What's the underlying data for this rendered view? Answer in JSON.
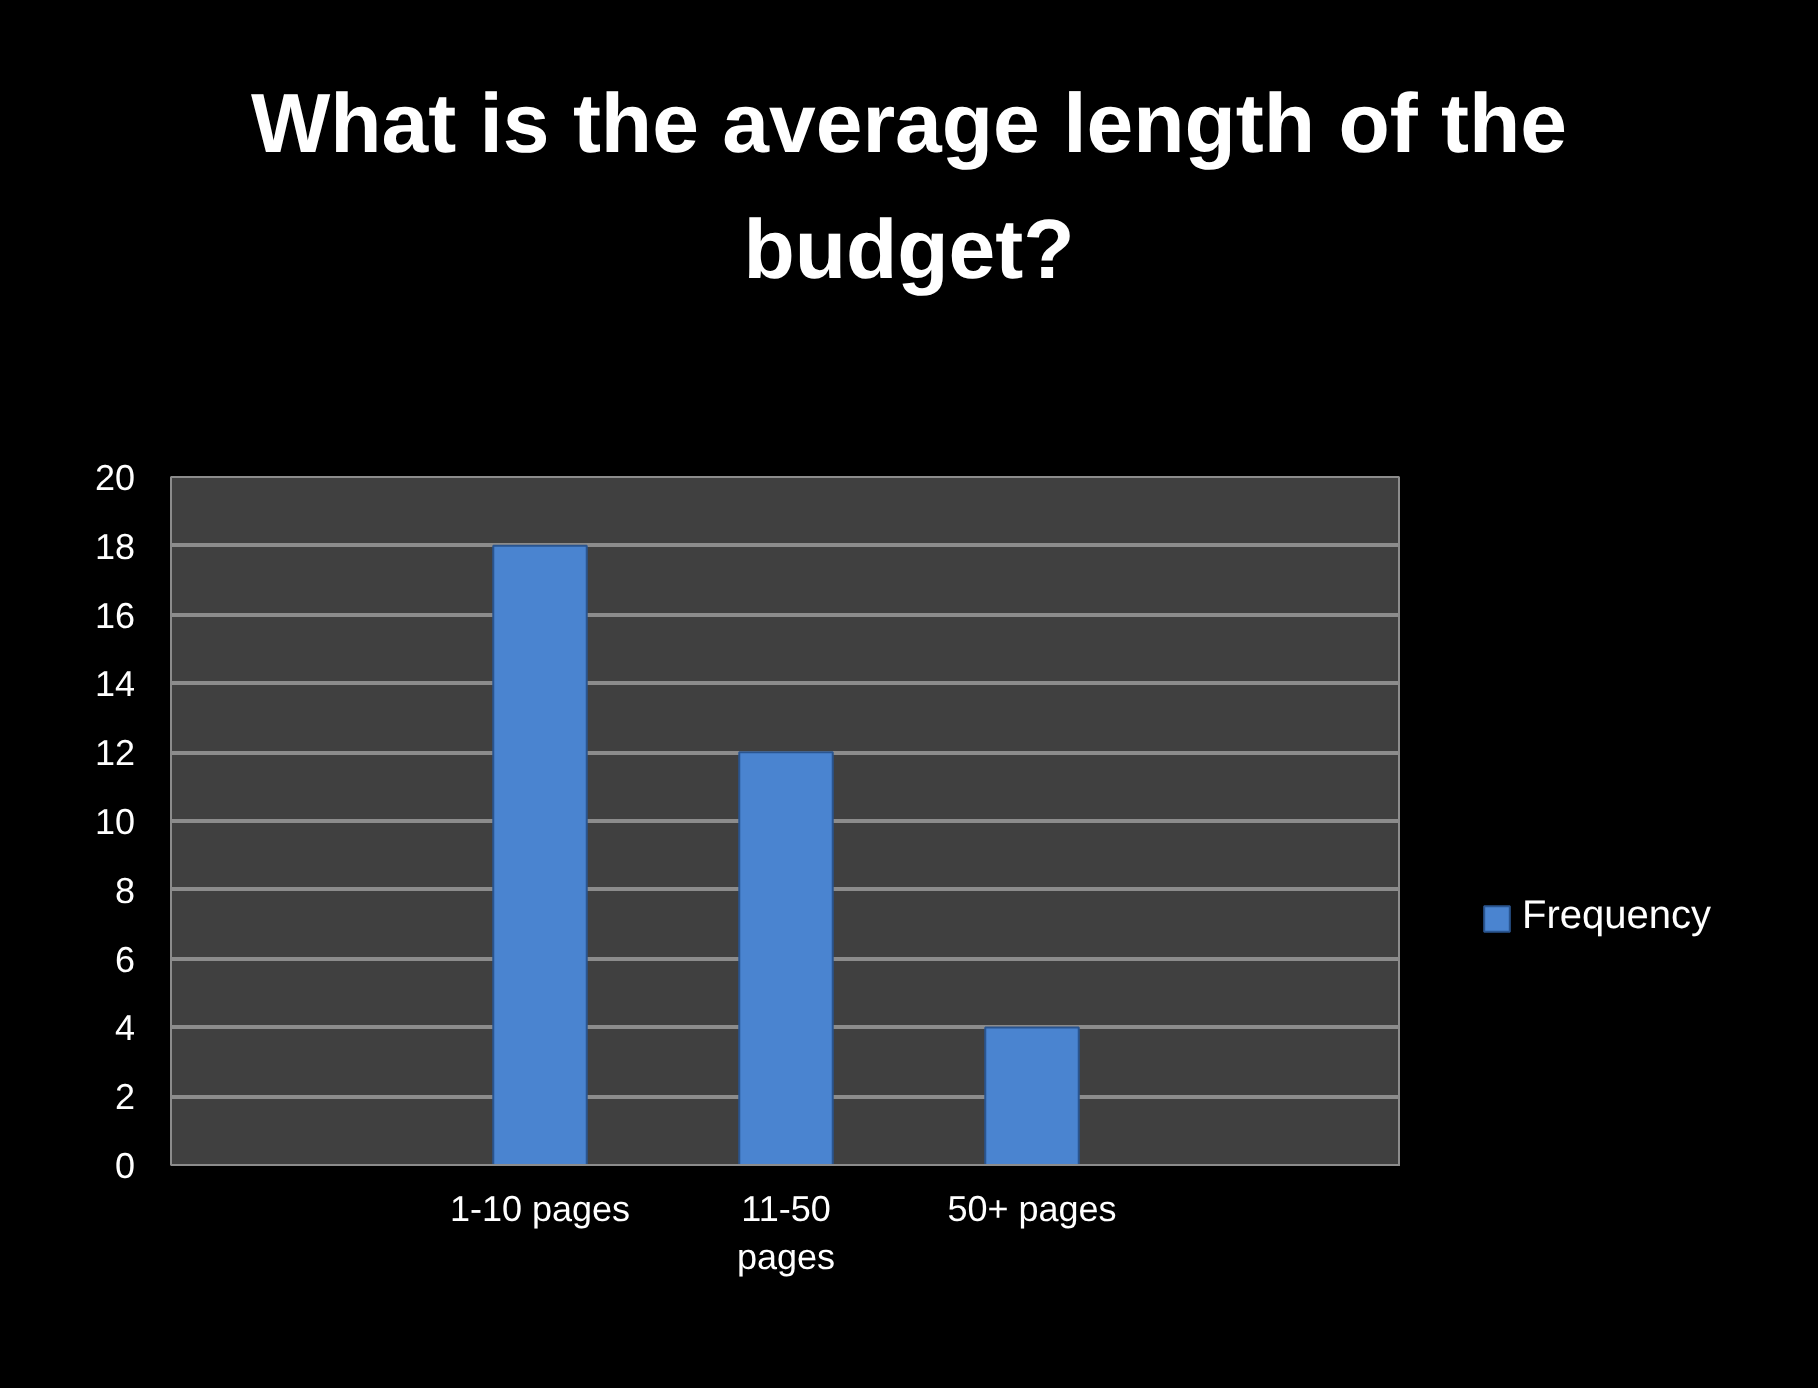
{
  "chart_data": {
    "type": "bar",
    "title": "What is the average length of the budget?",
    "categories": [
      null,
      "1-10 pages",
      "11-50 pages",
      "50+ pages",
      null
    ],
    "series": [
      {
        "name": "Frequency",
        "color": "#4a84d0",
        "values": [
          null,
          18,
          12,
          4,
          null
        ]
      }
    ],
    "ylim": [
      0,
      20
    ],
    "yticks": [
      0,
      2,
      4,
      6,
      8,
      10,
      12,
      14,
      16,
      18,
      20
    ],
    "grid": "y",
    "legend": "right"
  }
}
